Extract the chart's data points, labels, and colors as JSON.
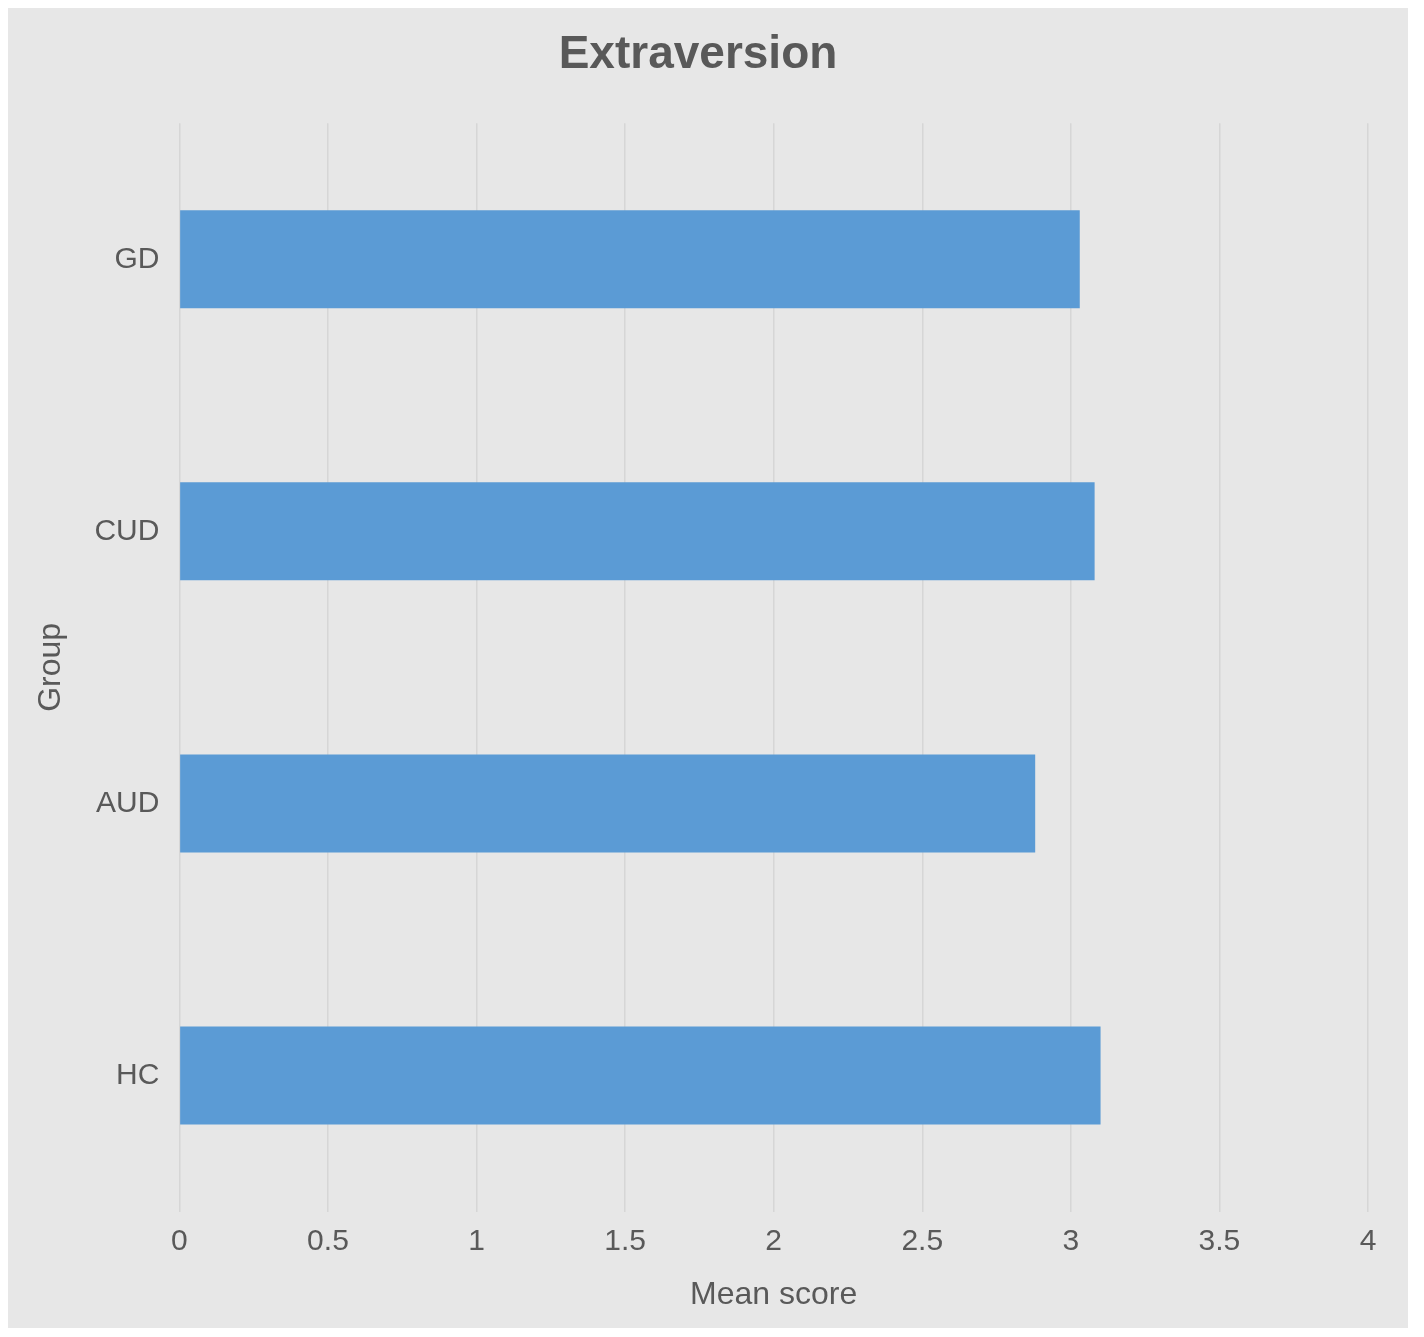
{
  "chart_data": {
    "type": "bar",
    "orientation": "horizontal",
    "title": "Extraversion",
    "xlabel": "Mean score",
    "ylabel": "Group",
    "categories": [
      "GD",
      "CUD",
      "AUD",
      "HC"
    ],
    "values": [
      3.03,
      3.08,
      2.88,
      3.1
    ],
    "color": "#5b9bd5",
    "xlim": [
      0,
      4
    ],
    "xticks": [
      0,
      0.5,
      1,
      1.5,
      2,
      2.5,
      3,
      3.5,
      4
    ],
    "grid": "x",
    "legend": false
  }
}
